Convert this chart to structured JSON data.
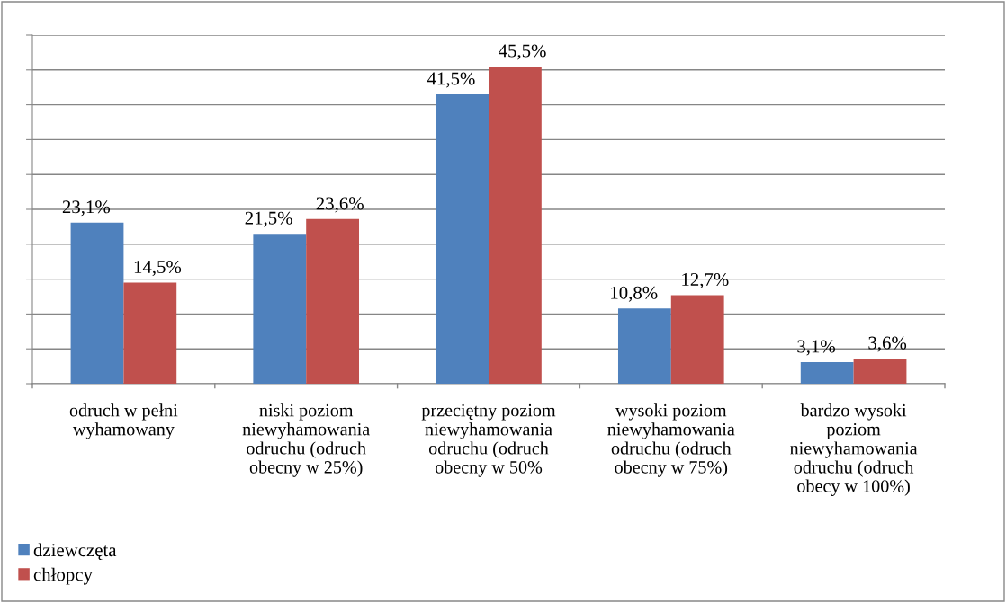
{
  "chart_data": {
    "type": "bar",
    "categories": [
      "odruch w pełni\nwyhamowany",
      "niski poziom\nniewyhamowania\nodruchu (odruch\nobecny w 25%)",
      "przeciętny poziom\nniewyhamowania\nodruchu (odruch\nobecny w 50%",
      "wysoki poziom\nniewyhamowania\nodruchu (odruch\nobecny w 75%)",
      "bardzo wysoki\npoziom\nniewyhamowania\nodruchu (odruch\nobecy w 100%)"
    ],
    "series": [
      {
        "name": "dziewczęta",
        "color": "#4f81bd",
        "values": [
          23.1,
          21.5,
          41.5,
          10.8,
          3.1
        ],
        "value_labels": [
          "23,1%",
          "21,5%",
          "41,5%",
          "10,8%",
          "3,1%"
        ]
      },
      {
        "name": "chłopcy",
        "color": "#c0504d",
        "values": [
          14.5,
          23.6,
          45.5,
          12.7,
          3.6
        ],
        "value_labels": [
          "14,5%",
          "23,6%",
          "45,5%",
          "12,7%",
          "3,6%"
        ]
      }
    ],
    "ylim": [
      0,
      50
    ],
    "yticks": [
      {
        "value": 0,
        "label": null
      },
      {
        "value": 5,
        "label": null
      },
      {
        "value": 10,
        "label": null
      },
      {
        "value": 15,
        "label": null
      },
      {
        "value": 20,
        "label": null
      },
      {
        "value": 25,
        "label": null
      },
      {
        "value": 30,
        "label": null
      },
      {
        "value": 35,
        "label": null
      },
      {
        "value": 40,
        "label": null
      },
      {
        "value": 45,
        "label": null
      },
      {
        "value": 50,
        "label": null
      }
    ],
    "tick_labels": "x",
    "grid": "y",
    "legend": "bottom left"
  }
}
